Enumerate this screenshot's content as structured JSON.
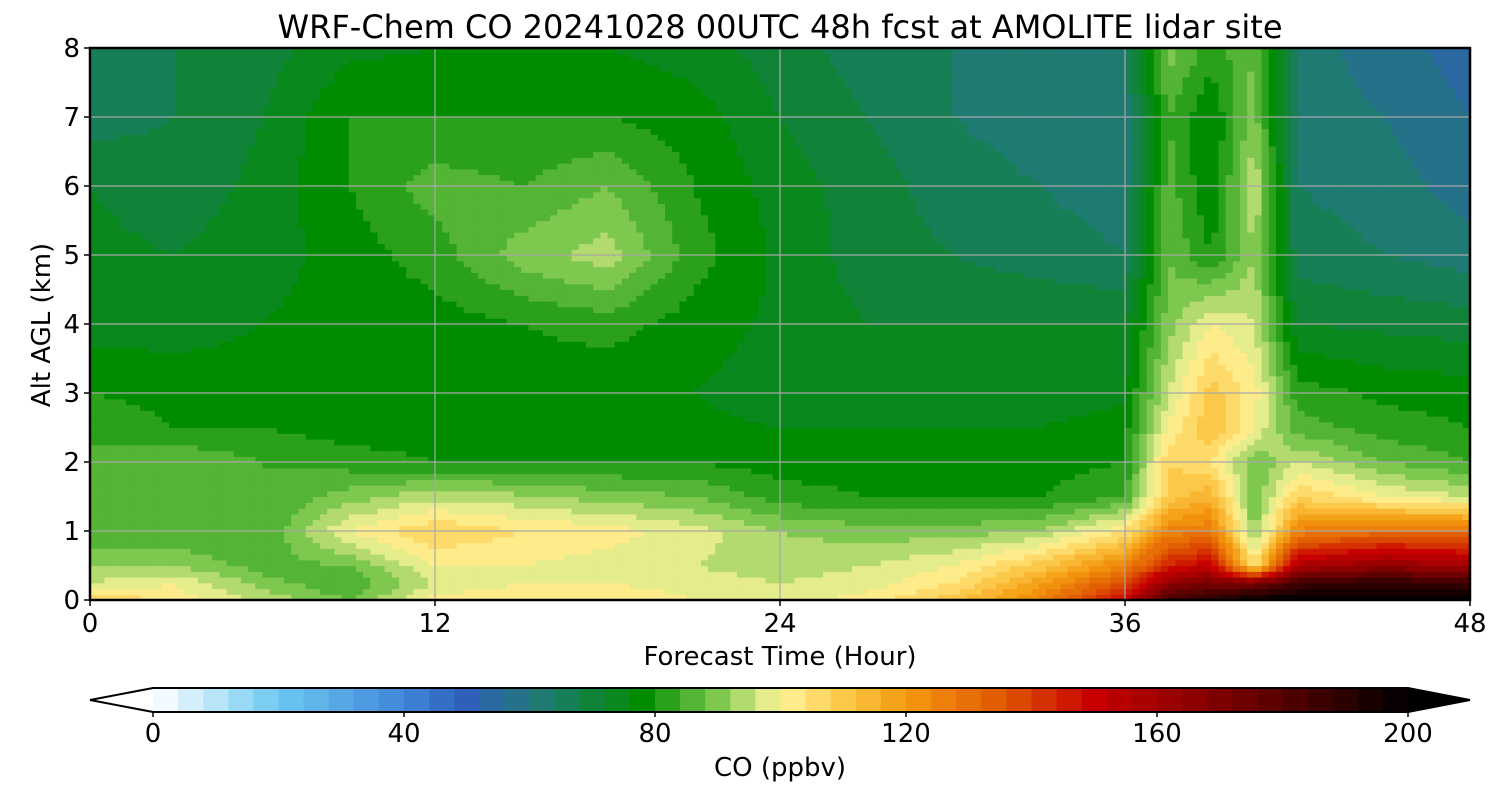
{
  "chart_data": {
    "type": "heatmap",
    "title": "WRF-Chem CO  20241028 00UTC 48h fcst at AMOLITE lidar site",
    "xlabel": "Forecast Time (Hour)",
    "ylabel": "Alt AGL (km)",
    "xlim": [
      0,
      48
    ],
    "ylim": [
      0,
      8
    ],
    "x_ticks": [
      "0",
      "12",
      "24",
      "36",
      "48"
    ],
    "y_ticks": [
      "0",
      "1",
      "2",
      "3",
      "4",
      "5",
      "6",
      "7",
      "8"
    ],
    "grid": true,
    "colorbar": {
      "label": "CO  (ppbv)",
      "range": [
        0,
        200
      ],
      "ticks": [
        "0",
        "40",
        "80",
        "120",
        "160",
        "200"
      ],
      "extend": "both",
      "stops": [
        {
          "v": 0,
          "c": "#ffffff"
        },
        {
          "v": 20,
          "c": "#6ec8f2"
        },
        {
          "v": 40,
          "c": "#3f86d8"
        },
        {
          "v": 50,
          "c": "#2f5fb8"
        },
        {
          "v": 62,
          "c": "#1f7a72"
        },
        {
          "v": 78,
          "c": "#008c00"
        },
        {
          "v": 90,
          "c": "#7ec850"
        },
        {
          "v": 100,
          "c": "#fff59a"
        },
        {
          "v": 110,
          "c": "#fcc84a"
        },
        {
          "v": 120,
          "c": "#f59a10"
        },
        {
          "v": 135,
          "c": "#e05a00"
        },
        {
          "v": 150,
          "c": "#c80000"
        },
        {
          "v": 175,
          "c": "#6a0000"
        },
        {
          "v": 200,
          "c": "#000000"
        }
      ]
    },
    "x": [
      0,
      3,
      6,
      9,
      12,
      15,
      18,
      21,
      24,
      27,
      30,
      33,
      36,
      37.5,
      39,
      40.5,
      42,
      45,
      48
    ],
    "y": [
      0,
      0.25,
      0.5,
      1,
      1.5,
      2,
      2.5,
      3,
      4,
      5,
      6,
      7,
      8
    ],
    "z": [
      [
        110,
        102,
        95,
        88,
        102,
        104,
        104,
        100,
        98,
        102,
        110,
        125,
        150,
        185,
        190,
        200,
        200,
        200,
        200
      ],
      [
        96,
        100,
        90,
        84,
        96,
        100,
        100,
        98,
        96,
        98,
        104,
        118,
        138,
        165,
        172,
        170,
        185,
        190,
        185
      ],
      [
        92,
        92,
        86,
        88,
        100,
        100,
        98,
        96,
        94,
        96,
        100,
        110,
        125,
        145,
        152,
        104,
        158,
        165,
        160
      ],
      [
        85,
        84,
        84,
        100,
        108,
        104,
        102,
        98,
        92,
        90,
        90,
        92,
        104,
        125,
        128,
        90,
        125,
        130,
        130
      ],
      [
        88,
        88,
        84,
        90,
        95,
        93,
        90,
        88,
        82,
        80,
        80,
        80,
        84,
        110,
        115,
        88,
        108,
        100,
        96
      ],
      [
        86,
        88,
        84,
        82,
        80,
        80,
        80,
        80,
        78,
        78,
        78,
        78,
        80,
        108,
        104,
        88,
        96,
        88,
        84
      ],
      [
        82,
        80,
        80,
        78,
        78,
        77,
        77,
        77,
        76,
        76,
        76,
        76,
        78,
        100,
        112,
        100,
        86,
        82,
        80
      ],
      [
        80,
        79,
        78,
        78,
        78,
        77,
        76,
        76,
        74,
        73,
        73,
        73,
        75,
        96,
        110,
        102,
        82,
        79,
        78
      ],
      [
        74,
        74,
        76,
        78,
        78,
        80,
        82,
        78,
        75,
        72,
        72,
        72,
        72,
        90,
        100,
        96,
        72,
        71,
        70
      ],
      [
        73,
        72,
        74,
        78,
        82,
        90,
        94,
        82,
        75,
        70,
        68,
        66,
        64,
        88,
        80,
        92,
        66,
        64,
        62
      ],
      [
        72,
        70,
        73,
        80,
        86,
        84,
        88,
        80,
        74,
        70,
        66,
        64,
        62,
        86,
        76,
        96,
        64,
        62,
        58
      ],
      [
        66,
        68,
        72,
        80,
        80,
        80,
        80,
        78,
        72,
        68,
        64,
        62,
        62,
        84,
        76,
        90,
        62,
        60,
        56
      ],
      [
        66,
        68,
        70,
        75,
        76,
        76,
        76,
        74,
        70,
        66,
        64,
        62,
        62,
        90,
        82,
        88,
        62,
        58,
        54
      ]
    ]
  }
}
